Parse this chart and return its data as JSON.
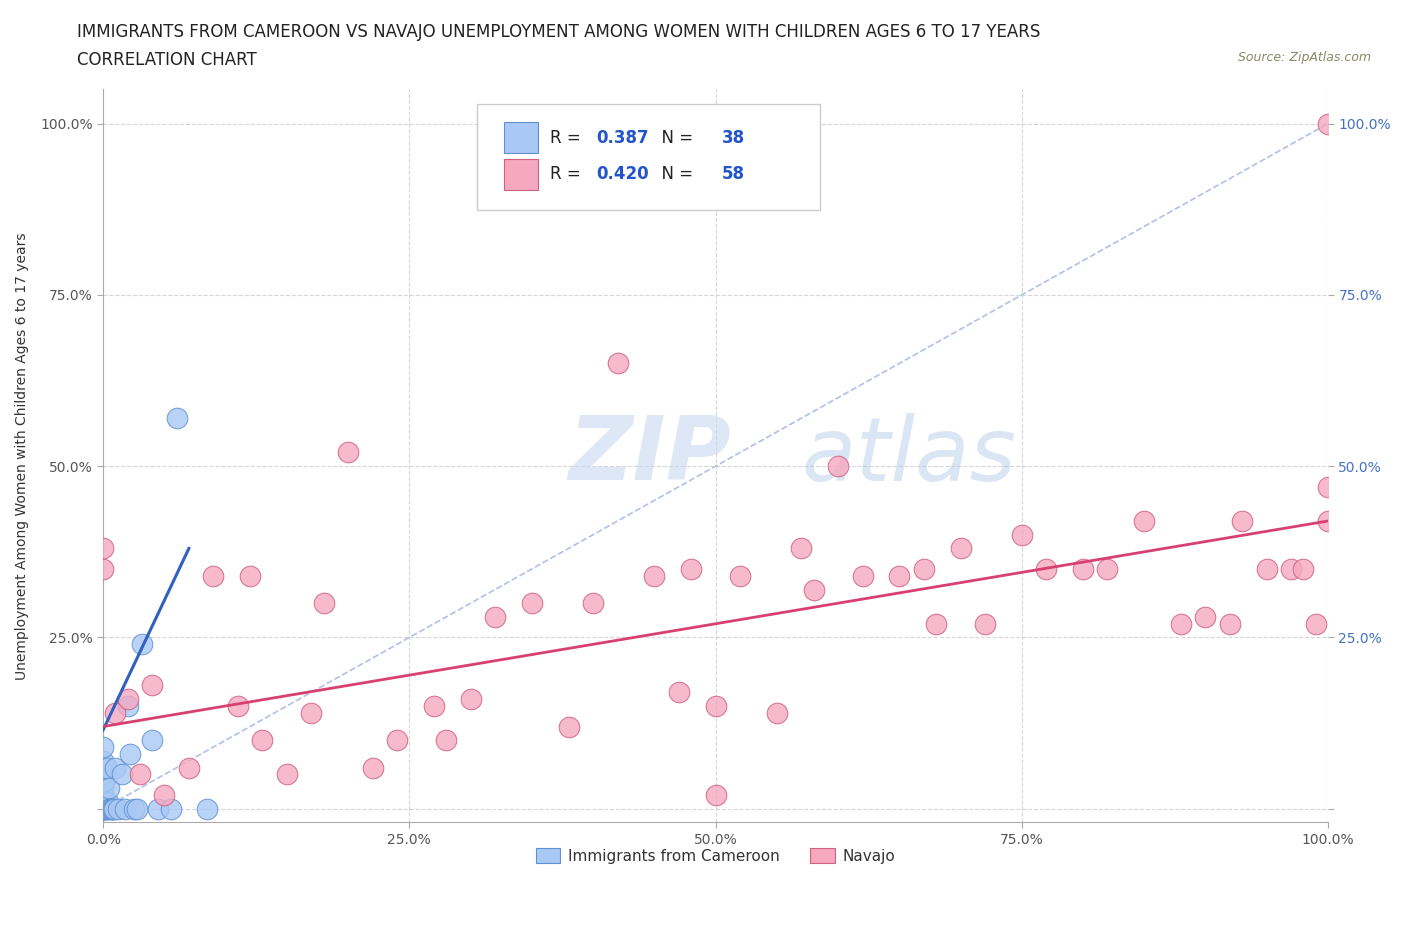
{
  "title": "IMMIGRANTS FROM CAMEROON VS NAVAJO UNEMPLOYMENT AMONG WOMEN WITH CHILDREN AGES 6 TO 17 YEARS",
  "subtitle": "CORRELATION CHART",
  "source": "Source: ZipAtlas.com",
  "ylabel": "Unemployment Among Women with Children Ages 6 to 17 years",
  "xlim": [
    0.0,
    1.0
  ],
  "ylim": [
    -0.02,
    1.05
  ],
  "xtick_values": [
    0.0,
    0.25,
    0.5,
    0.75,
    1.0
  ],
  "ytick_values": [
    0.0,
    0.25,
    0.5,
    0.75,
    1.0
  ],
  "legend_label1": "Immigrants from Cameroon",
  "legend_label2": "Navajo",
  "r1": 0.387,
  "n1": 38,
  "r2": 0.42,
  "n2": 58,
  "color_blue_fill": "#a8c8f5",
  "color_blue_edge": "#6090d0",
  "color_pink_fill": "#f5a8c0",
  "color_pink_edge": "#d06080",
  "color_diag": "#b0c0e8",
  "color_blue_line": "#3060c0",
  "color_pink_line": "#d84070",
  "color_right_ticks": "#4472c4",
  "title_fontsize": 12,
  "subtitle_fontsize": 12,
  "axis_label_fontsize": 10,
  "tick_fontsize": 10,
  "blue_x": [
    0.0,
    0.0,
    0.0,
    0.0,
    0.0,
    0.0,
    0.0,
    0.0,
    0.0,
    0.0,
    0.0,
    0.0,
    0.001,
    0.001,
    0.002,
    0.003,
    0.003,
    0.004,
    0.005,
    0.005,
    0.006,
    0.007,
    0.008,
    0.009,
    0.01,
    0.012,
    0.015,
    0.018,
    0.02,
    0.022,
    0.025,
    0.028,
    0.032,
    0.04,
    0.045,
    0.055,
    0.06,
    0.085
  ],
  "blue_y": [
    0.0,
    0.0,
    0.0,
    0.0,
    0.0,
    0.0,
    0.01,
    0.02,
    0.03,
    0.05,
    0.07,
    0.09,
    0.0,
    0.04,
    0.0,
    0.0,
    0.06,
    0.01,
    0.0,
    0.03,
    0.0,
    0.0,
    0.0,
    0.0,
    0.06,
    0.0,
    0.05,
    0.0,
    0.15,
    0.08,
    0.0,
    0.0,
    0.24,
    0.1,
    0.0,
    0.0,
    0.57,
    0.0
  ],
  "pink_x": [
    0.0,
    0.0,
    0.01,
    0.02,
    0.03,
    0.04,
    0.05,
    0.07,
    0.09,
    0.11,
    0.12,
    0.13,
    0.15,
    0.17,
    0.18,
    0.2,
    0.22,
    0.24,
    0.27,
    0.28,
    0.3,
    0.32,
    0.35,
    0.38,
    0.4,
    0.42,
    0.45,
    0.47,
    0.48,
    0.5,
    0.5,
    0.52,
    0.55,
    0.57,
    0.58,
    0.6,
    0.62,
    0.65,
    0.67,
    0.68,
    0.7,
    0.72,
    0.75,
    0.77,
    0.8,
    0.82,
    0.85,
    0.88,
    0.9,
    0.92,
    0.93,
    0.95,
    0.97,
    0.98,
    0.99,
    1.0,
    1.0,
    1.0
  ],
  "pink_y": [
    0.35,
    0.38,
    0.14,
    0.16,
    0.05,
    0.18,
    0.02,
    0.06,
    0.34,
    0.15,
    0.34,
    0.1,
    0.05,
    0.14,
    0.3,
    0.52,
    0.06,
    0.1,
    0.15,
    0.1,
    0.16,
    0.28,
    0.3,
    0.12,
    0.3,
    0.65,
    0.34,
    0.17,
    0.35,
    0.02,
    0.15,
    0.34,
    0.14,
    0.38,
    0.32,
    0.5,
    0.34,
    0.34,
    0.35,
    0.27,
    0.38,
    0.27,
    0.4,
    0.35,
    0.35,
    0.35,
    0.42,
    0.27,
    0.28,
    0.27,
    0.42,
    0.35,
    0.35,
    0.35,
    0.27,
    0.42,
    0.47,
    1.0
  ],
  "blue_trend_x": [
    0.0,
    0.07
  ],
  "blue_trend_y": [
    0.115,
    0.38
  ],
  "pink_trend_x": [
    0.0,
    1.0
  ],
  "pink_trend_y": [
    0.12,
    0.42
  ]
}
